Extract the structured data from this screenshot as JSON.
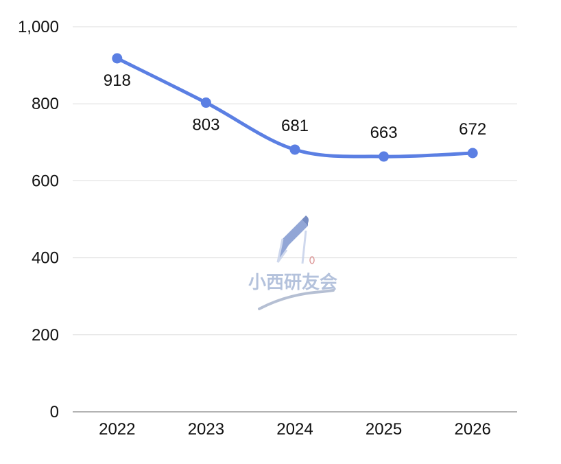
{
  "chart_data": {
    "type": "line",
    "categories": [
      "2022",
      "2023",
      "2024",
      "2025",
      "2026"
    ],
    "values": [
      918,
      803,
      681,
      663,
      672
    ],
    "data_labels": [
      "918",
      "803",
      "681",
      "663",
      "672"
    ],
    "ylim": [
      0,
      1000
    ],
    "y_ticks": [
      0,
      200,
      400,
      600,
      800,
      1000
    ],
    "y_tick_labels": [
      "0",
      "200",
      "400",
      "600",
      "800",
      "1,000"
    ],
    "grid": true,
    "series_color": "#5b7fe3",
    "title": "",
    "xlabel": "",
    "ylabel": ""
  },
  "watermark": {
    "text": "小西研友会",
    "icon": "pen-icon"
  }
}
